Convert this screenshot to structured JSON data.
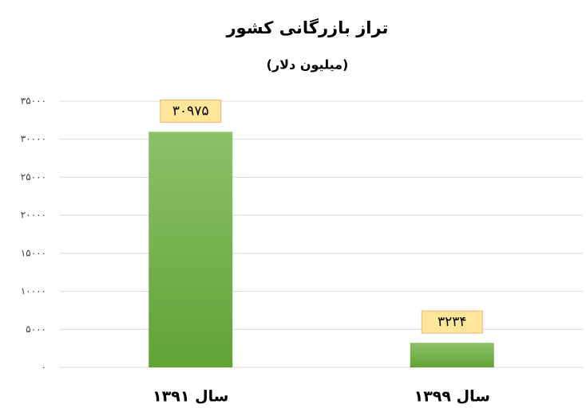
{
  "chart_data": {
    "type": "bar",
    "title": "تراز بازرگانی کشور",
    "subtitle": "(میلیون دلار)",
    "categories": [
      "سال ۱۳۹۱",
      "سال ۱۳۹۹"
    ],
    "values": [
      30975,
      3234
    ],
    "value_labels": [
      "۳۰۹۷۵",
      "۳۲۳۴"
    ],
    "color": "#70ad47",
    "ylim": [
      0,
      35000
    ],
    "yticks": [
      {
        "value": 0,
        "label": "۰"
      },
      {
        "value": 5000,
        "label": "۵۰۰۰"
      },
      {
        "value": 10000,
        "label": "۱۰۰۰۰"
      },
      {
        "value": 15000,
        "label": "۱۵۰۰۰"
      },
      {
        "value": 20000,
        "label": "۲۰۰۰۰"
      },
      {
        "value": 25000,
        "label": "۲۵۰۰۰"
      },
      {
        "value": 30000,
        "label": "۳۰۰۰۰"
      },
      {
        "value": 35000,
        "label": "۳۵۰۰۰"
      }
    ],
    "grid": true
  }
}
